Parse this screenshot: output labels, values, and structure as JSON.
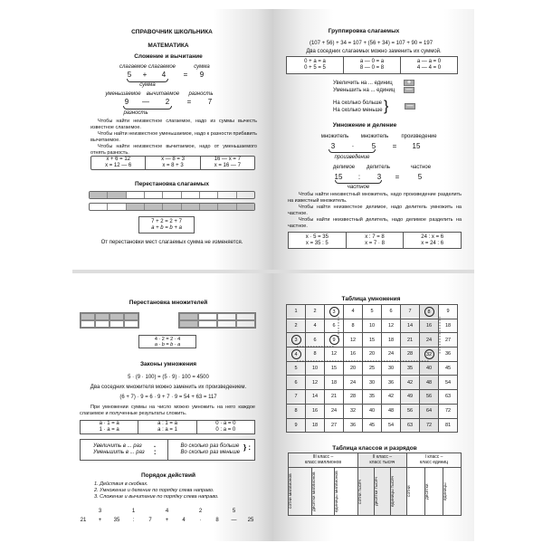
{
  "page1": {
    "header": "СПРАВОЧНИК ШКОЛЬНИКА",
    "subject": "МАТЕМАТИКА",
    "section": "Сложение и вычитание",
    "add": {
      "l1": "слагаемое",
      "l2": "слагаемое",
      "l3": "сумма",
      "a": "5",
      "op": "+",
      "b": "4",
      "eq": "=",
      "r": "9",
      "brace": "сумма"
    },
    "sub": {
      "l1": "уменьшаемое",
      "l2": "вычитаемое",
      "l3": "разность",
      "a": "9",
      "op": "—",
      "b": "2",
      "eq": "=",
      "r": "7",
      "brace": "разность"
    },
    "rules": [
      "Чтобы найти неизвестное слагаемое, надо из суммы вычесть известное слагаемое.",
      "Чтобы найти неизвестное уменьшаемое, надо к разности прибавить вычитаемое.",
      "Чтобы найти неизвестное вычитаемое, надо от уменьшаемого отнять разность."
    ],
    "examples": [
      [
        "x + 6 = 12",
        "x = 12 — 6"
      ],
      [
        "x — 8 = 3",
        "x = 8 + 3"
      ],
      [
        "16 — x = 7",
        "x = 16 — 7"
      ]
    ],
    "perm_title": "Перестановка слагаемых",
    "bar1_shaded": 2,
    "bar2_shaded": 7,
    "bar_cells": 9,
    "formula": [
      "7 + 2 = 2 + 7",
      "a + b = b + a"
    ],
    "caption": "От перестановки мест слагаемых сумма не изменяется."
  },
  "page2": {
    "title": "Группировка слагаемых",
    "equation": "(107 + 56) + 34 = 107 + (56 + 34) = 107 + 90 = 197",
    "note": "Два соседних слагаемых можно заменить их суммой.",
    "examples": [
      [
        "0 + a = a",
        "0 + 5 = 5"
      ],
      [
        "a — 0 = a",
        "8 — 0 = 8"
      ],
      [
        "a — a = 0",
        "4 — 4 = 0"
      ]
    ],
    "inc": "Увеличить  на ... единиц",
    "dec": "Уменьшить  на ... единиц",
    "more": "На сколько  больше",
    "less": "На сколько  меньше",
    "plus_icon": "+",
    "minus_icon": "—",
    "mul_title": "Умножение и деление",
    "mul": {
      "l1": "множитель",
      "l2": "множитель",
      "l3": "произведение",
      "a": "3",
      "op": "·",
      "b": "5",
      "eq": "=",
      "r": "15",
      "brace": "произведение"
    },
    "div": {
      "l1": "делимое",
      "l2": "делитель",
      "l3": "частное",
      "a": "15",
      "op": ":",
      "b": "3",
      "eq": "=",
      "r": "5",
      "brace": "частное"
    },
    "rules": [
      "Чтобы найти неизвестный множитель, надо произведение разделить на известный множитель.",
      "Чтобы найти неизвестное делимое, надо делитель умножить на частное.",
      "Чтобы найти неизвестный делитель, надо делимое разделить на частное."
    ],
    "examples2": [
      [
        "x · 5 = 35",
        "x = 35 : 5"
      ],
      [
        "x : 7 = 8",
        "x = 7 · 8"
      ],
      [
        "24 : x = 6",
        "x = 24 : 6"
      ]
    ]
  },
  "page3": {
    "title": "Перестановка множителей",
    "formula": [
      "4 · 2 = 2 · 4",
      "a · b = b · a"
    ],
    "laws_title": "Законы умножения",
    "law1": "5 · (9 · 100) = (5 · 9) · 100 = 4500",
    "law1_note": "Два соседних множителя можно заменить их произведением.",
    "law2": "(6 + 7) · 9 = 6 · 9 + 7 · 9 = 54 + 63 = 117",
    "law2_note": "При умножении суммы на число можно умножить на него каждое слагаемое и полученные результаты сложить.",
    "examples": [
      [
        "a · 1 = a",
        "1 · a = a"
      ],
      [
        "a : 1 = a",
        "a : a = 1"
      ],
      [
        "0 · a = 0",
        "0 : a = 0"
      ]
    ],
    "inc": "Увеличить  в ... раз",
    "dec": "Уменьшить  в ... раз",
    "more": "Во сколько  раз больше",
    "less": "Во сколько  раз меньше",
    "order_title": "Порядок действий",
    "order_rules": [
      "1. Действия в скобках.",
      "2. Умножение и деление по порядку слева направо.",
      "3. Сложение и вычитание по порядку слева направо."
    ],
    "order_nums": [
      "3",
      "1",
      "4",
      "2",
      "5"
    ],
    "expr": [
      "21",
      "+",
      "35",
      ":",
      "7",
      "+",
      "4",
      "·",
      "8",
      "—",
      "25"
    ]
  },
  "page4": {
    "mt_title": "Таблица умножения",
    "classes_title": "Таблица классов и разрядов",
    "classes": [
      "III класс –\nкласс миллионов",
      "II класс –\nкласс тысяч",
      "I класс –\nкласс единиц"
    ],
    "ranks": [
      "сотни миллионов",
      "десятки миллионов",
      "единицы миллионов",
      "сотни тысяч",
      "десятки тысяч",
      "единицы тысяч",
      "сотни",
      "десятки",
      "единицы"
    ]
  }
}
